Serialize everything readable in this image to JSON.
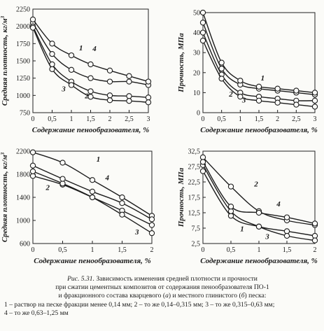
{
  "chart_data": [
    {
      "type": "line",
      "panel": "top-left",
      "ylabel": "Средняя плотность, кг/м³",
      "xlabel": "Содержание пенообразователя, %",
      "xlim": [
        0,
        3
      ],
      "ylim": [
        750,
        2250
      ],
      "xticks": [
        "0",
        "0,5",
        "1",
        "1,5",
        "2",
        "2,5",
        "3"
      ],
      "yticks": [
        "750",
        "1000",
        "1250",
        "1500",
        "1750",
        "2000",
        "2250"
      ],
      "grid": false,
      "series": [
        {
          "name": "1",
          "x": [
            0,
            0.5,
            1,
            1.5,
            2,
            2.5,
            3
          ],
          "y": [
            2050,
            1600,
            1370,
            1250,
            1200,
            1200,
            1150
          ]
        },
        {
          "name": "2",
          "x": [
            0,
            0.5,
            1,
            1.5,
            2,
            2.5,
            3
          ],
          "y": [
            2000,
            1450,
            1200,
            1060,
            1000,
            990,
            970
          ]
        },
        {
          "name": "3",
          "x": [
            0,
            0.5,
            1,
            1.5,
            2,
            2.5,
            3
          ],
          "y": [
            1980,
            1380,
            1150,
            980,
            930,
            920,
            900
          ]
        },
        {
          "name": "4",
          "x": [
            0,
            0.5,
            1,
            1.5,
            2,
            2.5,
            3
          ],
          "y": [
            2100,
            1750,
            1580,
            1450,
            1360,
            1280,
            1200
          ]
        }
      ],
      "curve_labels": [
        {
          "text": "1",
          "x": 1.25,
          "y": 1650
        },
        {
          "text": "4",
          "x": 1.6,
          "y": 1640
        },
        {
          "text": "2",
          "x": 1.4,
          "y": 960
        },
        {
          "text": "3",
          "x": 0.8,
          "y": 1060
        }
      ]
    },
    {
      "type": "line",
      "panel": "top-right",
      "ylabel": "Прочность, МПа",
      "xlabel": "Содержание пенообразователя, %",
      "xlim": [
        0,
        3
      ],
      "ylim": [
        0,
        50
      ],
      "xticks": [
        "0",
        "0,5",
        "1",
        "1,5",
        "2",
        "2,5",
        "3"
      ],
      "yticks": [
        "0",
        "10",
        "20",
        "30",
        "40",
        "50"
      ],
      "grid": false,
      "series": [
        {
          "name": "1",
          "x": [
            0,
            0.5,
            1,
            1.5,
            2,
            2.5,
            3
          ],
          "y": [
            45,
            22,
            14,
            12,
            11,
            10,
            9
          ]
        },
        {
          "name": "2",
          "x": [
            0,
            0.5,
            1,
            1.5,
            2,
            2.5,
            3
          ],
          "y": [
            40,
            19,
            10,
            8,
            7,
            6,
            6
          ]
        },
        {
          "name": "3",
          "x": [
            0,
            0.5,
            1,
            1.5,
            2,
            2.5,
            3
          ],
          "y": [
            36,
            17,
            8,
            6,
            5,
            4,
            3
          ]
        },
        {
          "name": "4",
          "x": [
            0,
            0.5,
            1,
            1.5,
            2,
            2.5,
            3
          ],
          "y": [
            50,
            25,
            16,
            13,
            12,
            11,
            10
          ]
        }
      ],
      "curve_labels": [
        {
          "text": "1",
          "x": 1.6,
          "y": 16
        },
        {
          "text": "2",
          "x": 0.75,
          "y": 8
        },
        {
          "text": "3",
          "x": 1.1,
          "y": 5
        }
      ]
    },
    {
      "type": "line",
      "panel": "bottom-left",
      "ylabel": "Средняя плотность, кг/м³",
      "xlabel": "Содержание пенообразователя, %",
      "xlim": [
        0,
        2
      ],
      "ylim": [
        600,
        2200
      ],
      "xticks": [
        "0",
        "0,5",
        "1",
        "1,5",
        "2"
      ],
      "yticks": [
        "600",
        "1000",
        "1400",
        "1800",
        "2200"
      ],
      "grid": false,
      "series": [
        {
          "name": "1",
          "x": [
            0,
            0.5,
            1,
            1.5,
            2
          ],
          "y": [
            2180,
            2000,
            1700,
            1400,
            1080
          ]
        },
        {
          "name": "2",
          "x": [
            0,
            0.5,
            1,
            1.5,
            2
          ],
          "y": [
            1770,
            1620,
            1400,
            1170,
            920
          ]
        },
        {
          "name": "3",
          "x": [
            0,
            0.5,
            1,
            1.5,
            2
          ],
          "y": [
            1850,
            1640,
            1400,
            1100,
            780
          ]
        },
        {
          "name": "4",
          "x": [
            0,
            0.5,
            1,
            1.5,
            2
          ],
          "y": [
            1950,
            1720,
            1500,
            1300,
            1020
          ]
        }
      ],
      "curve_labels": [
        {
          "text": "1",
          "x": 1.1,
          "y": 2020
        },
        {
          "text": "2",
          "x": 0.25,
          "y": 1530
        },
        {
          "text": "4",
          "x": 1.25,
          "y": 1700
        },
        {
          "text": "3",
          "x": 1.75,
          "y": 760
        }
      ]
    },
    {
      "type": "line",
      "panel": "bottom-right",
      "ylabel": "Прочность, МПа",
      "xlabel": "Содержание пенообразователя, %",
      "xlim": [
        0,
        2
      ],
      "ylim": [
        2.5,
        32.5
      ],
      "xticks": [
        "0",
        "0,5",
        "1",
        "1,5",
        "2"
      ],
      "yticks": [
        "2,5",
        "7,5",
        "12,5",
        "17,5",
        "22,5",
        "27,5",
        "32,5"
      ],
      "grid": false,
      "series": [
        {
          "name": "1",
          "x": [
            0,
            0.5,
            1,
            1.5,
            2
          ],
          "y": [
            26,
            11.5,
            8,
            6.5,
            5
          ]
        },
        {
          "name": "2",
          "x": [
            0,
            0.5,
            1,
            1.5,
            2
          ],
          "y": [
            30.5,
            21,
            13,
            10,
            8.5
          ]
        },
        {
          "name": "3",
          "x": [
            0,
            0.5,
            1,
            1.5,
            2
          ],
          "y": [
            28,
            13,
            8,
            5,
            3.5
          ]
        },
        {
          "name": "4",
          "x": [
            0,
            0.5,
            1,
            1.5,
            2
          ],
          "y": [
            29,
            14.5,
            12.5,
            11,
            9
          ]
        }
      ],
      "curve_labels": [
        {
          "text": "2",
          "x": 0.95,
          "y": 21
        },
        {
          "text": "4",
          "x": 1.35,
          "y": 14.5
        },
        {
          "text": "1",
          "x": 0.7,
          "y": 6.5
        },
        {
          "text": "3",
          "x": 1.15,
          "y": 4
        }
      ]
    }
  ],
  "caption": {
    "title_lead": "Рис. 5.31.",
    "title_rest": " Зависимость изменения средней плотности и прочности",
    "line2": "при сжатии цементных композитов от содержания пенообразователя ПО-1",
    "line3_a": "и фракционного состава кварцевого (",
    "line3_a_letter": "а",
    "line3_b": ") и местного глинистого (",
    "line3_b_letter": "б",
    "line3_c": ") песка:",
    "legend_1": "1 – раствор на песке фракции менее 0,14 мм; 2 – то же 0,14–0,315 мм; 3 – то же 0,315–0,63 мм;",
    "legend_2": "4 – то же 0,63–1,25 мм"
  }
}
